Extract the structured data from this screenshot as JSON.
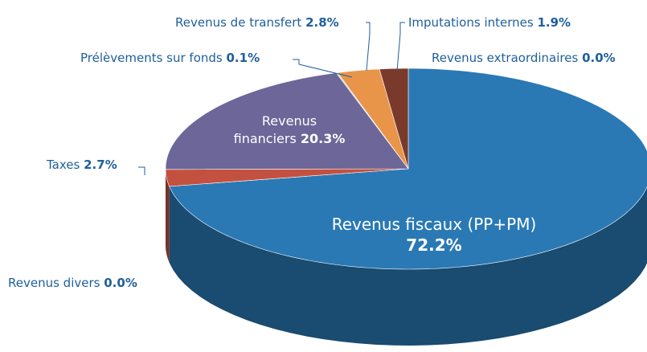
{
  "chart_data": {
    "type": "pie",
    "categories": [
      "Revenus fiscaux (PP+PM)",
      "Revenus divers",
      "Taxes",
      "Revenus financiers",
      "Prélèvements sur fonds",
      "Revenus de transfert",
      "Imputations internes",
      "Revenus extraordinaires"
    ],
    "values": [
      72.2,
      0.0,
      2.7,
      20.3,
      0.1,
      2.8,
      1.9,
      0.0
    ],
    "value_labels": [
      "72.2%",
      "0.0%",
      "2.7%",
      "20.3%",
      "0.1%",
      "2.8%",
      "1.9%",
      "0.0%"
    ],
    "colors": [
      "#2a79b5",
      "#8a8a8a",
      "#c4513f",
      "#6c6699",
      "#c9c9c9",
      "#e8954a",
      "#7a3a2b",
      "#999999"
    ]
  }
}
